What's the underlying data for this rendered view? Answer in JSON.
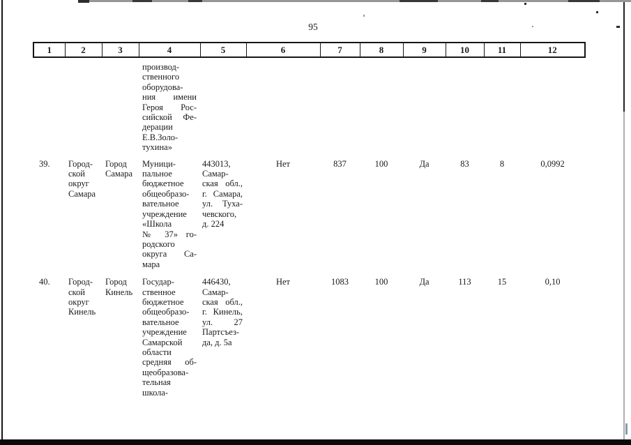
{
  "page_number": "95",
  "colors": {
    "ink": "#1a1a1a",
    "paper": "#ffffff"
  },
  "table": {
    "header": [
      "1",
      "2",
      "3",
      "4",
      "5",
      "6",
      "7",
      "8",
      "9",
      "10",
      "11",
      "12"
    ],
    "rows": [
      {
        "name": "row-38-continuation",
        "cells": [
          "",
          "",
          "",
          "производ-\nственного\nоборудова-\nния имени\nГероя Рос-\nсийской Фе-\nдерации\nЕ.В.Золо-\nтухина»",
          "",
          "",
          "",
          "",
          "",
          "",
          "",
          ""
        ]
      },
      {
        "name": "row-39",
        "cells": [
          "39.",
          "Город-\nской\nокруг\nСамара",
          "Город\nСамара",
          "Муници-\nпальное\nбюджетное\nобщеобразо-\nвательное\nучреждение\n«Школа\n№ 37» го-\nродского\nокруга Са-\nмара",
          "443013,\nСамар-\nская обл.,\nг. Самара,\nул. Туха-\nчевского,\nд. 224",
          "Нет",
          "837",
          "100",
          "Да",
          "83",
          "8",
          "0,0992"
        ]
      },
      {
        "name": "row-40",
        "cells": [
          "40.",
          "Город-\nской\nокруг\nКинель",
          "Город\nКинель",
          "Государ-\nственное\nбюджетное\nобщеобразо-\nвательное\nучреждение\nСамарской\nобласти\nсредняя об-\nщеобразова-\nтельная\nшкола-",
          "446430,\nСамар-\nская обл.,\nг. Кинель,\nул. 27\nПартсъез-\nда, д. 5а",
          "Нет",
          "1083",
          "100",
          "Да",
          "113",
          "15",
          "0,10"
        ]
      }
    ]
  }
}
